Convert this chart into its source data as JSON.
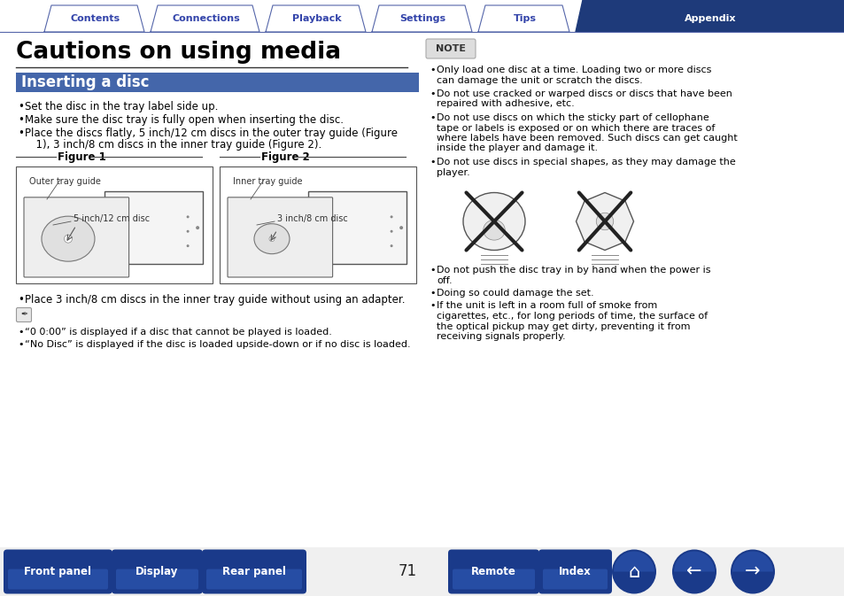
{
  "bg_color": "#ffffff",
  "tab_labels": [
    "Contents",
    "Connections",
    "Playback",
    "Settings",
    "Tips",
    "Appendix"
  ],
  "tab_active_index": 5,
  "tab_active_color": "#1e3a7a",
  "tab_inactive_color": "#ffffff",
  "tab_border_color": "#5566aa",
  "tab_text_color_active": "#ffffff",
  "tab_text_color_inactive": "#3344aa",
  "title": "Cautions on using media",
  "section_title": "Inserting a disc",
  "section_bg": "#4466aa",
  "section_text_color": "#ffffff",
  "note_label": "NOTE",
  "note_bg": "#dddddd",
  "note_border": "#aaaaaa",
  "bullet_left": [
    "Set the disc in the tray label side up.",
    "Make sure the disc tray is fully open when inserting the disc.",
    "Place the discs flatly, 5 inch/12 cm discs in the outer tray guide (Figure\n  1), 3 inch/8 cm discs in the inner tray guide (Figure 2)."
  ],
  "fig1_label": "Figure 1",
  "fig2_label": "Figure 2",
  "fig1_annotations": [
    "Outer tray guide",
    "5 inch/12 cm disc"
  ],
  "fig2_annotations": [
    "Inner tray guide",
    "3 inch/8 cm disc"
  ],
  "bullet_after_fig": "Place 3 inch/8 cm discs in the inner tray guide without using an adapter.",
  "tip_bullets": [
    "“0 0:00” is displayed if a disc that cannot be played is loaded.",
    "“No Disc” is displayed if the disc is loaded upside-down or if no disc is loaded."
  ],
  "note_bullets": [
    "Only load one disc at a time. Loading two or more discs can damage the unit or scratch the discs.",
    "Do not use cracked or warped discs or discs that have been repaired with adhesive, etc.",
    "Do not use discs on which the sticky part of cellophane tape or labels is exposed or on which there are traces of where labels have been removed. Such discs can get caught inside the player and damage it.",
    "Do not use discs in special shapes, as they may damage the player."
  ],
  "bottom_bullets": [
    "Do not push the disc tray in by hand when the power is off.",
    "Doing so could damage the set.",
    "If the unit is left in a room full of smoke from cigarettes, etc., for long periods of time, the surface of the optical pickup may get dirty, preventing it from receiving signals properly."
  ],
  "bottom_buttons": [
    "Front panel",
    "Display",
    "Rear panel",
    "Remote",
    "Index"
  ],
  "page_number": "71",
  "bottom_btn_color": "#1a3a8a",
  "bottom_btn_text": "#ffffff",
  "divider_color": "#333333",
  "line_color": "#888888"
}
